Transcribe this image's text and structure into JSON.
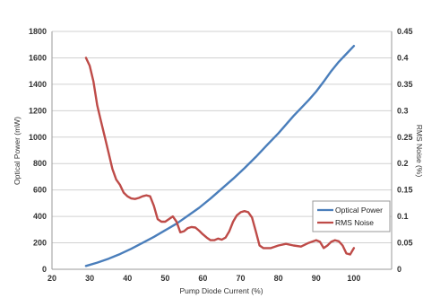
{
  "chart_data": {
    "type": "line",
    "xlabel": "Pump Diode Current (%)",
    "ylabel": "Optical Power (mW)",
    "y2label": "RMS Noise (%)",
    "xlim": [
      20,
      110
    ],
    "ylim": [
      0,
      1800
    ],
    "y2lim": [
      0,
      0.45
    ],
    "x_ticks": [
      20,
      30,
      40,
      50,
      60,
      70,
      80,
      90,
      100
    ],
    "y_ticks": [
      0,
      200,
      400,
      600,
      800,
      1000,
      1200,
      1400,
      1600,
      1800
    ],
    "y2_ticks": [
      0,
      0.05,
      0.1,
      0.15,
      0.2,
      0.25,
      0.3,
      0.35,
      0.4,
      0.45
    ],
    "grid": "horizontal",
    "legend": "right",
    "series": [
      {
        "name": "Optical Power",
        "axis": "left",
        "color": "#4a7ebb",
        "x": [
          29,
          32,
          35,
          38,
          41,
          44,
          47,
          50,
          53,
          56,
          59,
          62,
          65,
          68,
          71,
          74,
          77,
          80,
          82,
          84,
          86,
          88,
          90,
          92,
          94,
          96,
          98,
          100
        ],
        "y": [
          25,
          50,
          80,
          115,
          155,
          200,
          245,
          295,
          345,
          405,
          465,
          535,
          610,
          685,
          765,
          850,
          940,
          1030,
          1095,
          1160,
          1220,
          1280,
          1345,
          1420,
          1500,
          1570,
          1630,
          1690
        ]
      },
      {
        "name": "RMS Noise",
        "axis": "right",
        "color": "#be4b48",
        "x": [
          29,
          30,
          31,
          32,
          33,
          34,
          35,
          36,
          37,
          38,
          39,
          40,
          41,
          42,
          43,
          44,
          45,
          46,
          47,
          48,
          49,
          50,
          51,
          52,
          53,
          54,
          55,
          56,
          57,
          58,
          59,
          60,
          61,
          62,
          63,
          64,
          65,
          66,
          67,
          68,
          69,
          70,
          71,
          72,
          73,
          74,
          75,
          76,
          78,
          80,
          82,
          84,
          86,
          88,
          90,
          91,
          92,
          93,
          94,
          95,
          96,
          97,
          98,
          99,
          100
        ],
        "y": [
          0.4,
          0.385,
          0.355,
          0.31,
          0.28,
          0.25,
          0.22,
          0.19,
          0.17,
          0.16,
          0.145,
          0.138,
          0.134,
          0.133,
          0.135,
          0.138,
          0.14,
          0.138,
          0.12,
          0.095,
          0.09,
          0.09,
          0.095,
          0.1,
          0.09,
          0.07,
          0.072,
          0.078,
          0.08,
          0.079,
          0.073,
          0.066,
          0.06,
          0.055,
          0.055,
          0.058,
          0.056,
          0.06,
          0.072,
          0.09,
          0.102,
          0.108,
          0.11,
          0.108,
          0.098,
          0.072,
          0.045,
          0.04,
          0.04,
          0.045,
          0.048,
          0.045,
          0.043,
          0.05,
          0.055,
          0.052,
          0.04,
          0.045,
          0.052,
          0.055,
          0.053,
          0.045,
          0.03,
          0.028,
          0.04
        ]
      }
    ]
  }
}
